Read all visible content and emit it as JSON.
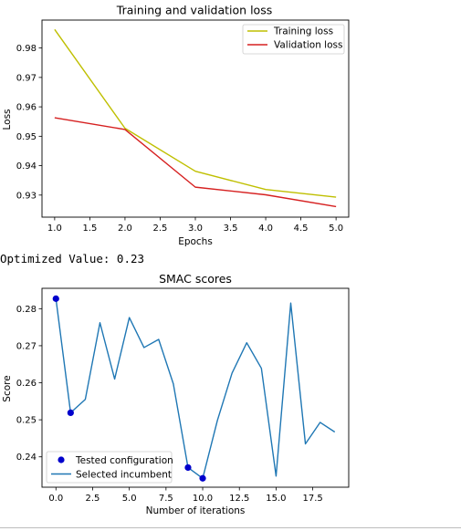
{
  "output_text": "Optimized Value: 0.23",
  "colors": {
    "training": "#bfbf00",
    "validation": "#d62020",
    "scores": "#1f77b4",
    "tested": "#0000cc"
  },
  "chart_data": [
    {
      "type": "line",
      "title": "Training and validation loss",
      "xlabel": "Epochs",
      "ylabel": "Loss",
      "xlim": [
        0.82,
        5.18
      ],
      "ylim": [
        0.9225,
        0.9895
      ],
      "xticks": [
        1.0,
        1.5,
        2.0,
        2.5,
        3.0,
        3.5,
        4.0,
        4.5,
        5.0
      ],
      "xtick_labels": [
        "1.0",
        "1.5",
        "2.0",
        "2.5",
        "3.0",
        "3.5",
        "4.0",
        "4.5",
        "5.0"
      ],
      "yticks": [
        0.93,
        0.94,
        0.95,
        0.96,
        0.97,
        0.98
      ],
      "ytick_labels": [
        "0.93",
        "0.94",
        "0.95",
        "0.96",
        "0.97",
        "0.98"
      ],
      "legend_position": "top-right",
      "grid": false,
      "x": [
        1,
        2,
        3,
        4,
        5
      ],
      "series": [
        {
          "name": "Training loss",
          "color": "#bfbf00",
          "values": [
            0.9863,
            0.9527,
            0.9381,
            0.9319,
            0.9293
          ]
        },
        {
          "name": "Validation loss",
          "color": "#d62020",
          "values": [
            0.9563,
            0.9523,
            0.9327,
            0.9301,
            0.9261
          ]
        }
      ]
    },
    {
      "type": "line",
      "title": "SMAC scores",
      "xlabel": "Number of iterations",
      "ylabel": "Score",
      "xlim": [
        -0.95,
        19.95
      ],
      "ylim": [
        0.2318,
        0.2855
      ],
      "xticks": [
        0.0,
        2.5,
        5.0,
        7.5,
        10.0,
        12.5,
        15.0,
        17.5
      ],
      "xtick_labels": [
        "0.0",
        "2.5",
        "5.0",
        "7.5",
        "10.0",
        "12.5",
        "15.0",
        "17.5"
      ],
      "yticks": [
        0.24,
        0.25,
        0.26,
        0.27,
        0.28
      ],
      "ytick_labels": [
        "0.24",
        "0.25",
        "0.26",
        "0.27",
        "0.28"
      ],
      "legend_position": "bottom-left",
      "grid": false,
      "line": {
        "name": "Selected incumbent",
        "color": "#1f77b4",
        "x": [
          0,
          1,
          2,
          3,
          4,
          5,
          6,
          7,
          8,
          9,
          10,
          11,
          12,
          13,
          14,
          15,
          16,
          17,
          18,
          19
        ],
        "values": [
          0.2827,
          0.2519,
          0.2555,
          0.2762,
          0.261,
          0.2776,
          0.2695,
          0.2717,
          0.2597,
          0.2371,
          0.2342,
          0.2498,
          0.2626,
          0.2708,
          0.2639,
          0.2348,
          0.2815,
          0.2435,
          0.2493,
          0.2467
        ]
      },
      "points": {
        "name": "Tested configuration",
        "color": "#0000cc",
        "x": [
          0,
          1,
          9,
          10
        ],
        "values": [
          0.2827,
          0.2519,
          0.2371,
          0.2342
        ]
      }
    }
  ]
}
